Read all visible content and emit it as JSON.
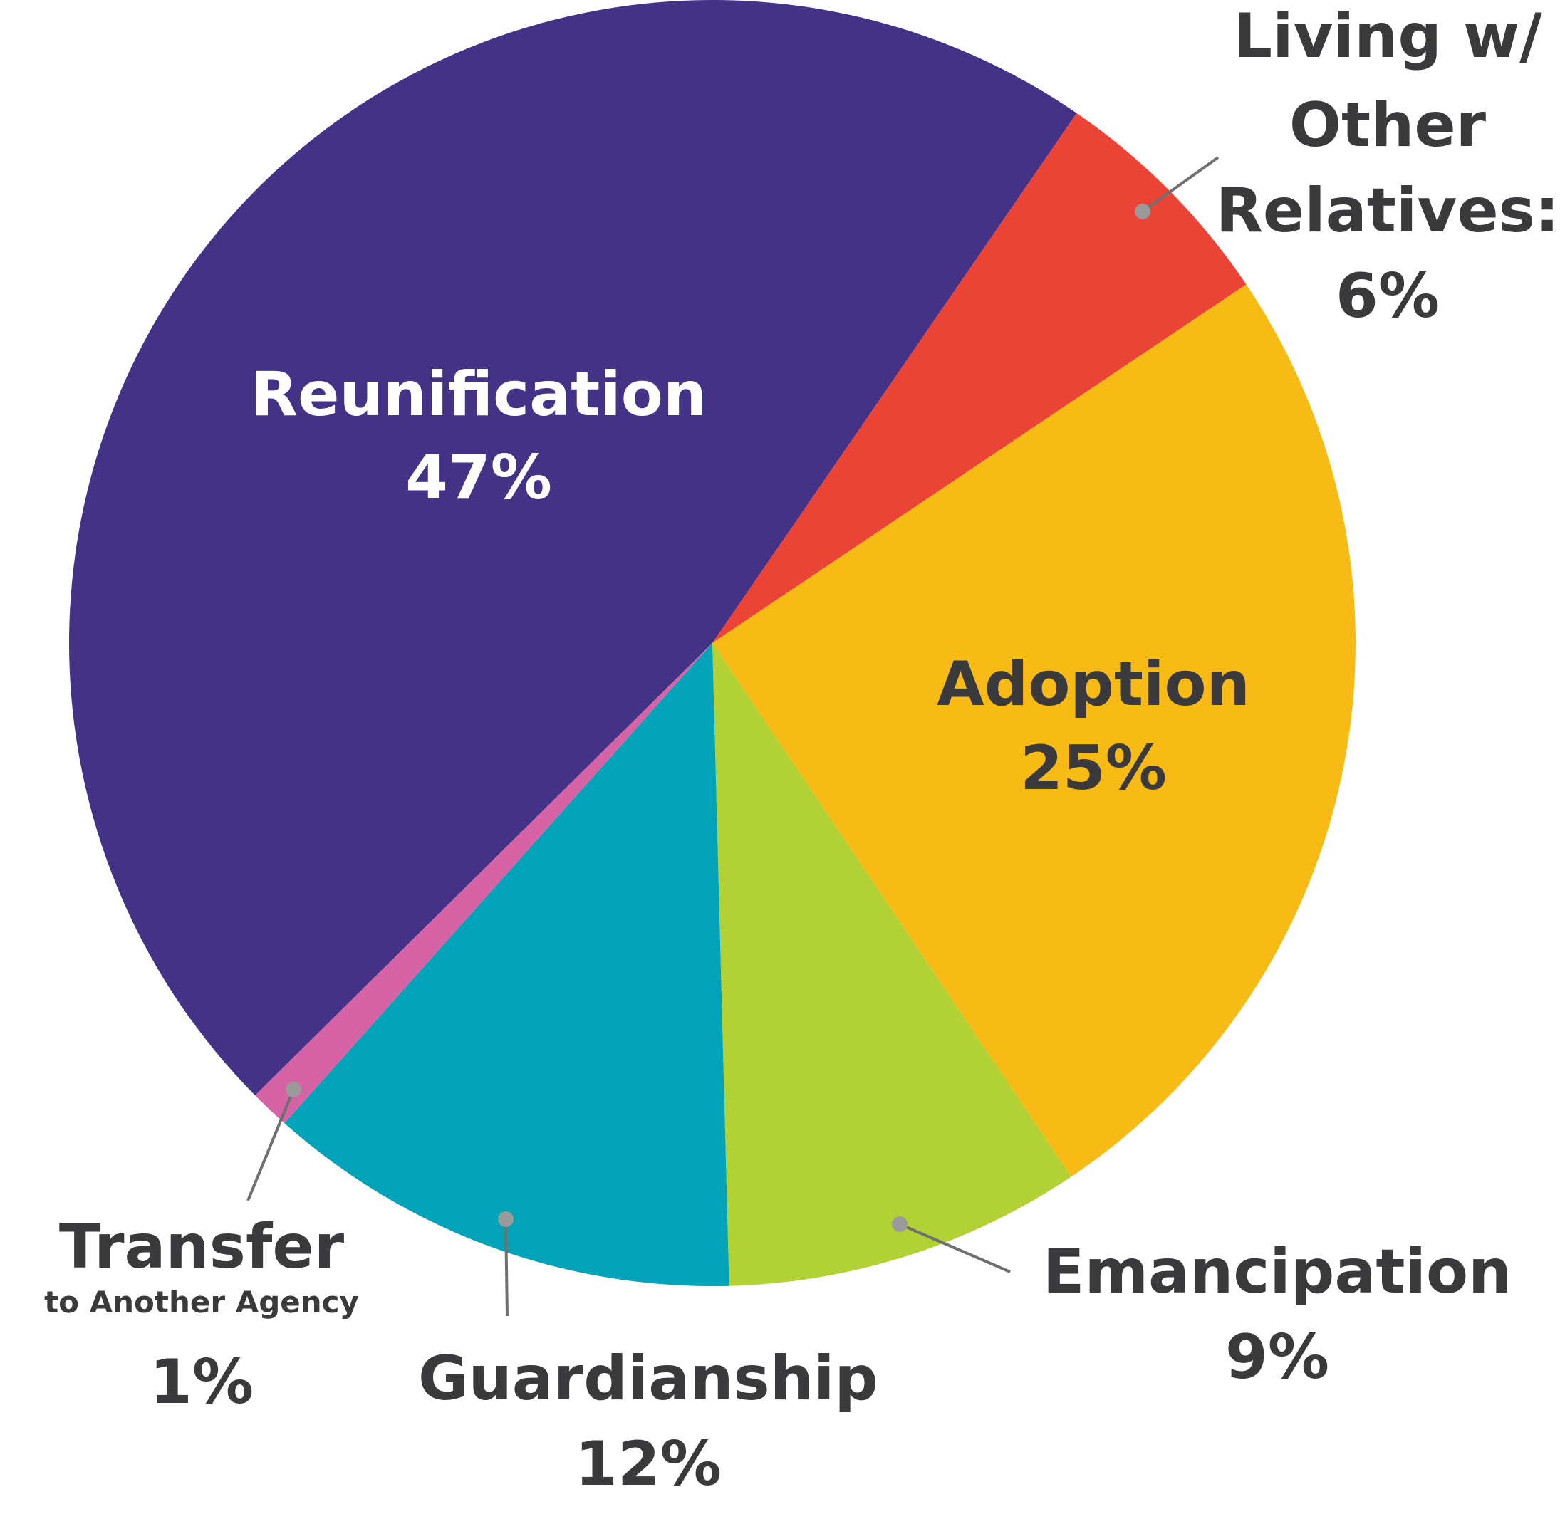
{
  "chart_data": {
    "type": "pie",
    "slices": [
      {
        "label": "Reunification",
        "sublabel": "",
        "value_text": "47%",
        "value": 47,
        "color": "#443287"
      },
      {
        "label": "Living w/ Other Relatives:",
        "label_lines": [
          "Living w/",
          "Other",
          "Relatives:"
        ],
        "sublabel": "",
        "value_text": "6%",
        "value": 6,
        "color": "#EB4335"
      },
      {
        "label": "Adoption",
        "sublabel": "",
        "value_text": "25%",
        "value": 25,
        "color": "#F8BA14"
      },
      {
        "label": "Emancipation",
        "sublabel": "",
        "value_text": "9%",
        "value": 9,
        "color": "#B1D135"
      },
      {
        "label": "Guardianship",
        "sublabel": "",
        "value_text": "12%",
        "value": 12,
        "color": "#00A3B7"
      },
      {
        "label": "Transfer",
        "sublabel": "to Another Agency",
        "value_text": "1%",
        "value": 1,
        "color": "#D663A5"
      }
    ]
  }
}
